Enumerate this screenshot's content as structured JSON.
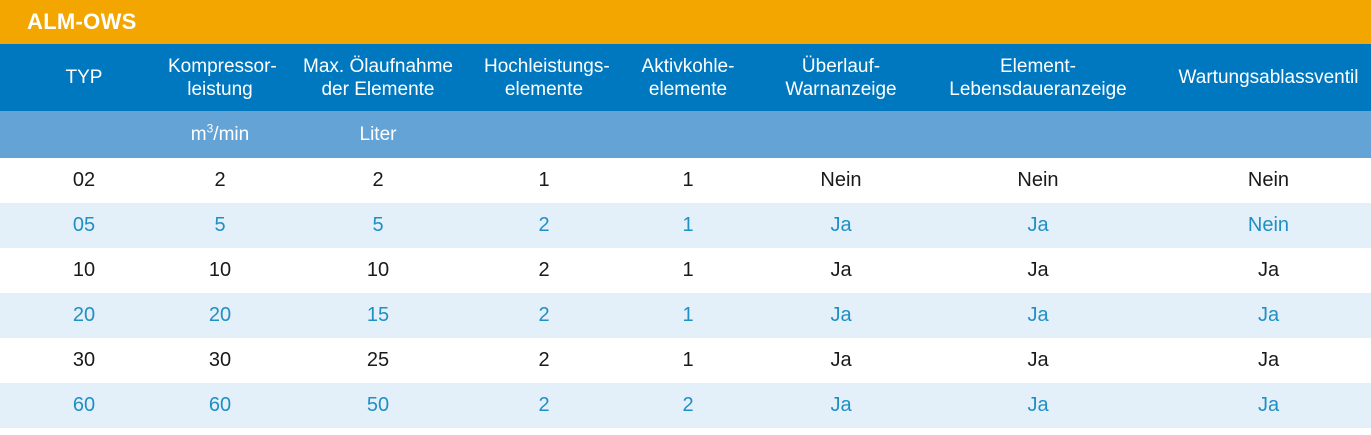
{
  "title": "ALM-OWS",
  "columns": [
    {
      "line1": "TYP",
      "line2": ""
    },
    {
      "line1": "Kompressor-",
      "line2": "leistung"
    },
    {
      "line1": "Max. Ölaufnahme",
      "line2": "der Elemente"
    },
    {
      "line1": "Hochleistungs-",
      "line2": "elemente"
    },
    {
      "line1": "Aktivkohle-",
      "line2": "elemente"
    },
    {
      "line1": "Überlauf-",
      "line2": "Warnanzeige"
    },
    {
      "line1": "Element-",
      "line2": "Lebensdaueranzeige"
    },
    {
      "line1": "Wartungsablassventil",
      "line2": ""
    }
  ],
  "units": {
    "compressor_prefix": "m",
    "compressor_sup": "3",
    "compressor_suffix": "/min",
    "oil": "Liter"
  },
  "rows": [
    [
      "02",
      "2",
      "2",
      "1",
      "1",
      "Nein",
      "Nein",
      "Nein"
    ],
    [
      "05",
      "5",
      "5",
      "2",
      "1",
      "Ja",
      "Ja",
      "Nein"
    ],
    [
      "10",
      "10",
      "10",
      "2",
      "1",
      "Ja",
      "Ja",
      "Ja"
    ],
    [
      "20",
      "20",
      "15",
      "2",
      "1",
      "Ja",
      "Ja",
      "Ja"
    ],
    [
      "30",
      "30",
      "25",
      "2",
      "1",
      "Ja",
      "Ja",
      "Ja"
    ],
    [
      "60",
      "60",
      "50",
      "2",
      "2",
      "Ja",
      "Ja",
      "Ja"
    ]
  ]
}
